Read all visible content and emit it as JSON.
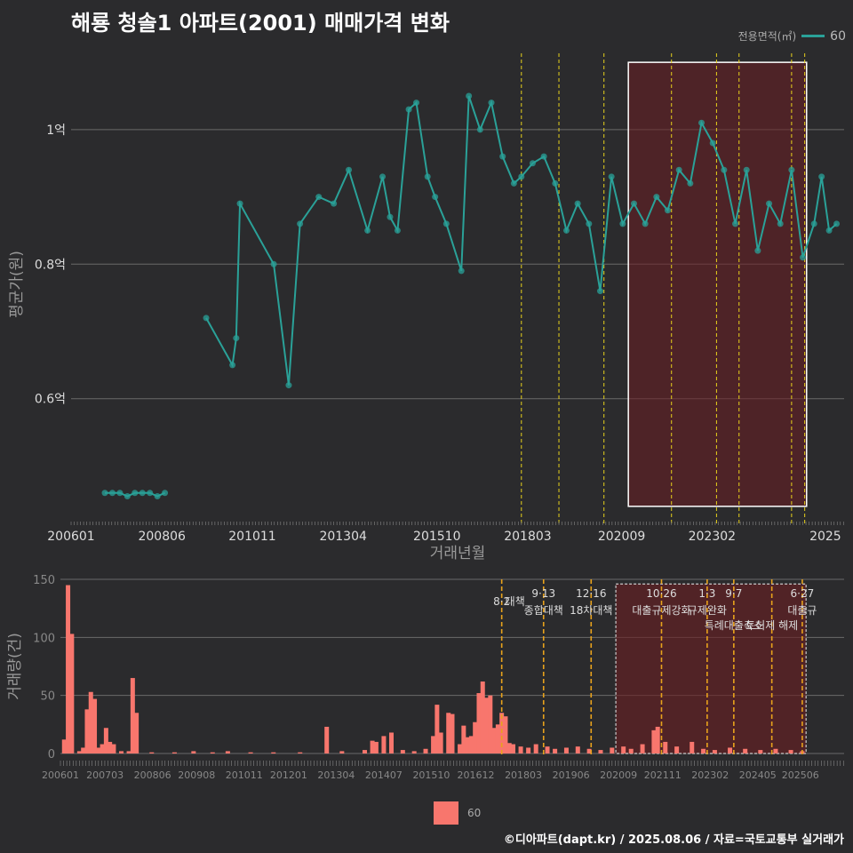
{
  "title": "해룡 청솔1 아파트(2001) 매매가격 변화",
  "legend": {
    "title": "전용면적(㎡)",
    "item": "60",
    "bar_item": "60"
  },
  "footer": "©디아파트(dapt.kr) / 2025.08.06 / 자료=국토교통부 실거래가",
  "colors": {
    "line": "#2aa198",
    "bar": "#f8766d",
    "policy": "#e8d21c",
    "policy_bottom": "#e8a21c",
    "highlight": "#6b1e22",
    "bg": "#2b2b2d"
  },
  "chart_data": [
    {
      "type": "line",
      "title": "해룡 청솔1 아파트(2001) 매매가격 변화",
      "xlabel": "거래년월",
      "ylabel": "평균가(원)",
      "x_ticks": [
        "200601",
        "200806",
        "201011",
        "201304",
        "201510",
        "201803",
        "202009",
        "202302",
        "2025"
      ],
      "y_ticks": [
        "0.6억",
        "0.8억",
        "1억"
      ],
      "ylim": [
        0.42,
        1.12
      ],
      "grid": true,
      "series": [
        {
          "name": "60",
          "points": [
            [
              2006.9,
              0.46
            ],
            [
              2007.1,
              0.46
            ],
            [
              2007.3,
              0.46
            ],
            [
              2007.5,
              0.455
            ],
            [
              2007.7,
              0.46
            ],
            [
              2007.9,
              0.46
            ],
            [
              2008.1,
              0.46
            ],
            [
              2008.3,
              0.455
            ],
            [
              2008.5,
              0.46
            ],
            [
              2009.6,
              0.72
            ],
            [
              2010.3,
              0.65
            ],
            [
              2010.4,
              0.69
            ],
            [
              2010.5,
              0.89
            ],
            [
              2011.4,
              0.8
            ],
            [
              2011.8,
              0.62
            ],
            [
              2012.1,
              0.86
            ],
            [
              2012.6,
              0.9
            ],
            [
              2013.0,
              0.89
            ],
            [
              2013.4,
              0.94
            ],
            [
              2013.9,
              0.85
            ],
            [
              2014.3,
              0.93
            ],
            [
              2014.5,
              0.87
            ],
            [
              2014.7,
              0.85
            ],
            [
              2015.0,
              1.03
            ],
            [
              2015.2,
              1.04
            ],
            [
              2015.5,
              0.93
            ],
            [
              2015.7,
              0.9
            ],
            [
              2016.0,
              0.86
            ],
            [
              2016.4,
              0.79
            ],
            [
              2016.6,
              1.05
            ],
            [
              2016.9,
              1.0
            ],
            [
              2017.2,
              1.04
            ],
            [
              2017.5,
              0.96
            ],
            [
              2017.8,
              0.92
            ],
            [
              2018.0,
              0.93
            ],
            [
              2018.3,
              0.95
            ],
            [
              2018.6,
              0.96
            ],
            [
              2018.9,
              0.92
            ],
            [
              2019.2,
              0.85
            ],
            [
              2019.5,
              0.89
            ],
            [
              2019.8,
              0.86
            ],
            [
              2020.1,
              0.76
            ],
            [
              2020.4,
              0.93
            ],
            [
              2020.7,
              0.86
            ],
            [
              2021.0,
              0.89
            ],
            [
              2021.3,
              0.86
            ],
            [
              2021.6,
              0.9
            ],
            [
              2021.9,
              0.88
            ],
            [
              2022.2,
              0.94
            ],
            [
              2022.5,
              0.92
            ],
            [
              2022.8,
              1.01
            ],
            [
              2023.1,
              0.98
            ],
            [
              2023.4,
              0.94
            ],
            [
              2023.7,
              0.86
            ],
            [
              2024.0,
              0.94
            ],
            [
              2024.3,
              0.82
            ],
            [
              2024.6,
              0.89
            ],
            [
              2024.9,
              0.86
            ],
            [
              2025.2,
              0.94
            ],
            [
              2025.5,
              0.81
            ],
            [
              2025.8,
              0.86
            ],
            [
              2026.0,
              0.93
            ],
            [
              2026.2,
              0.85
            ],
            [
              2026.4,
              0.86
            ]
          ]
        }
      ],
      "policy_lines_x": [
        2018.0,
        2019.0,
        2020.2,
        2022.0,
        2023.2,
        2023.8,
        2025.2,
        2025.55
      ],
      "highlight_x": [
        2020.85,
        2025.6
      ]
    },
    {
      "type": "bar",
      "xlabel": "",
      "ylabel": "거래량(건)",
      "x_ticks": [
        "200601",
        "200703",
        "200806",
        "200908",
        "201011",
        "201201",
        "201304",
        "201407",
        "201510",
        "201612",
        "201803",
        "201906",
        "202009",
        "202111",
        "202302",
        "202405",
        "202506"
      ],
      "y_ticks": [
        "0",
        "50",
        "100",
        "150"
      ],
      "ylim": [
        0,
        150
      ],
      "annotations": [
        {
          "x": 2017.6,
          "date": "8·2",
          "label": "대책"
        },
        {
          "x": 2018.7,
          "date": "9·13",
          "label": "종합대책"
        },
        {
          "x": 2019.95,
          "date": "12·16",
          "label": "18차대책"
        },
        {
          "x": 2021.8,
          "date": "10·26",
          "label": "대출규제강화"
        },
        {
          "x": 2023.0,
          "date": "1·3",
          "label": "규제완화"
        },
        {
          "x": 2023.7,
          "date": "9·7",
          "label": "특례대출축소"
        },
        {
          "x": 2024.7,
          "date": "",
          "label": "토허제 해제"
        },
        {
          "x": 2025.5,
          "date": "6·27",
          "label": "대출규"
        }
      ],
      "highlight_x": [
        2020.6,
        2025.6
      ],
      "series": [
        {
          "name": "60",
          "values": [
            [
              2006.1,
              12
            ],
            [
              2006.2,
              145
            ],
            [
              2006.3,
              103
            ],
            [
              2006.5,
              2
            ],
            [
              2006.6,
              5
            ],
            [
              2006.7,
              38
            ],
            [
              2006.8,
              53
            ],
            [
              2006.9,
              47
            ],
            [
              2007.0,
              5
            ],
            [
              2007.1,
              8
            ],
            [
              2007.2,
              22
            ],
            [
              2007.3,
              10
            ],
            [
              2007.4,
              8
            ],
            [
              2007.6,
              2
            ],
            [
              2007.8,
              2
            ],
            [
              2007.9,
              65
            ],
            [
              2008.0,
              35
            ],
            [
              2008.4,
              1
            ],
            [
              2009.0,
              1
            ],
            [
              2009.5,
              2
            ],
            [
              2010.0,
              1
            ],
            [
              2010.4,
              2
            ],
            [
              2011.0,
              1
            ],
            [
              2011.6,
              1
            ],
            [
              2012.3,
              1
            ],
            [
              2013.0,
              23
            ],
            [
              2013.4,
              2
            ],
            [
              2014.0,
              3
            ],
            [
              2014.2,
              11
            ],
            [
              2014.3,
              10
            ],
            [
              2014.5,
              15
            ],
            [
              2014.7,
              18
            ],
            [
              2015.0,
              3
            ],
            [
              2015.3,
              2
            ],
            [
              2015.6,
              4
            ],
            [
              2015.8,
              15
            ],
            [
              2015.9,
              42
            ],
            [
              2016.0,
              18
            ],
            [
              2016.2,
              35
            ],
            [
              2016.3,
              34
            ],
            [
              2016.5,
              8
            ],
            [
              2016.6,
              24
            ],
            [
              2016.7,
              14
            ],
            [
              2016.8,
              15
            ],
            [
              2016.9,
              27
            ],
            [
              2017.0,
              52
            ],
            [
              2017.1,
              62
            ],
            [
              2017.2,
              48
            ],
            [
              2017.3,
              50
            ],
            [
              2017.4,
              22
            ],
            [
              2017.5,
              25
            ],
            [
              2017.6,
              35
            ],
            [
              2017.7,
              32
            ],
            [
              2017.8,
              9
            ],
            [
              2017.9,
              8
            ],
            [
              2018.1,
              6
            ],
            [
              2018.3,
              5
            ],
            [
              2018.5,
              8
            ],
            [
              2018.8,
              6
            ],
            [
              2019.0,
              4
            ],
            [
              2019.3,
              5
            ],
            [
              2019.6,
              6
            ],
            [
              2019.9,
              4
            ],
            [
              2020.2,
              3
            ],
            [
              2020.5,
              5
            ],
            [
              2020.8,
              6
            ],
            [
              2021.0,
              4
            ],
            [
              2021.3,
              8
            ],
            [
              2021.6,
              20
            ],
            [
              2021.7,
              23
            ],
            [
              2021.9,
              10
            ],
            [
              2022.2,
              6
            ],
            [
              2022.6,
              10
            ],
            [
              2022.9,
              4
            ],
            [
              2023.2,
              3
            ],
            [
              2023.6,
              5
            ],
            [
              2024.0,
              4
            ],
            [
              2024.4,
              3
            ],
            [
              2024.8,
              4
            ],
            [
              2025.2,
              3
            ],
            [
              2025.5,
              2
            ]
          ]
        }
      ]
    }
  ]
}
